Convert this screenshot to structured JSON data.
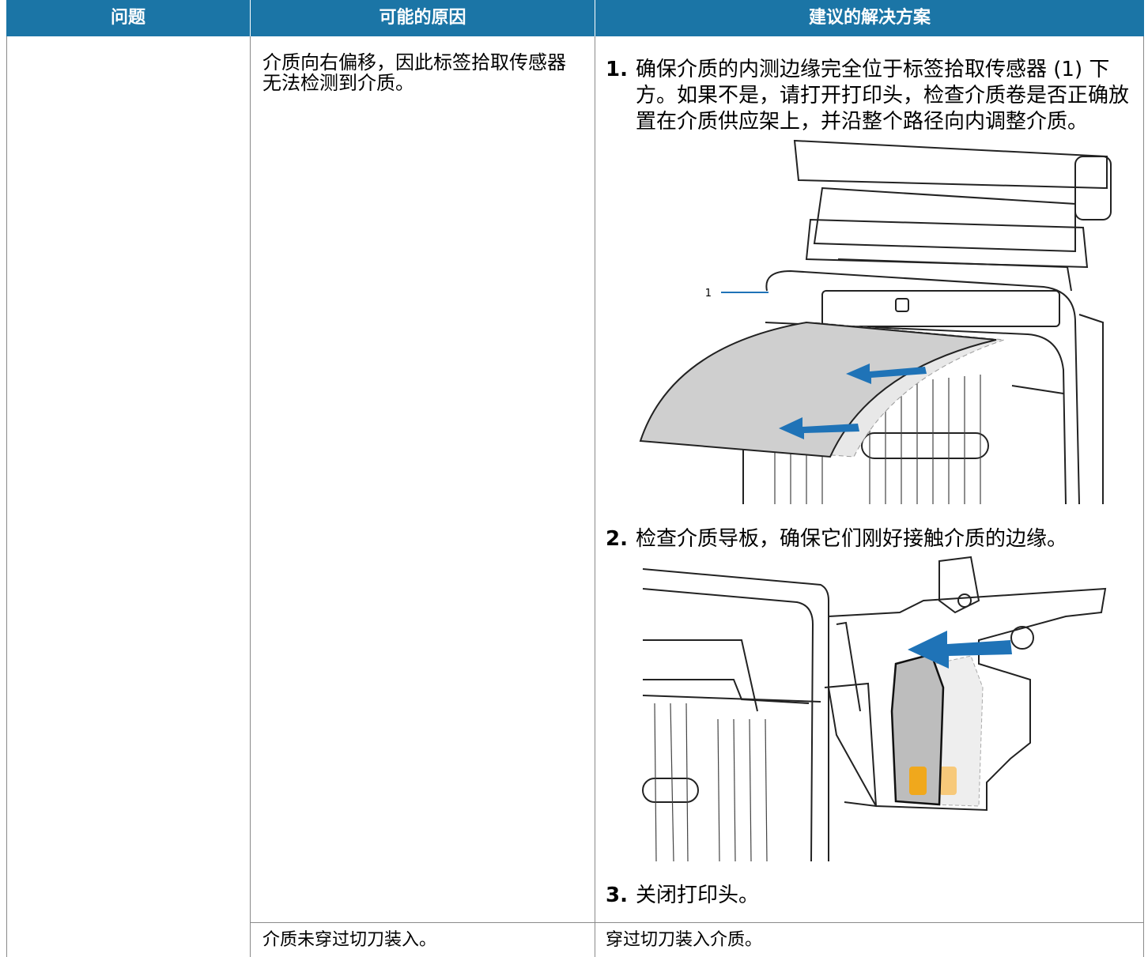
{
  "table": {
    "headers": [
      "问题",
      "可能的原因",
      "建议的解决方案"
    ],
    "rows": [
      {
        "cause": "介质向右偏移，因此标签拾取传感器无法检测到介质。",
        "steps": [
          {
            "number": "1.",
            "text": "确保介质的内测边缘完全位于标签拾取传感器 (1) 下方。如果不是，请打开打印头，检查介质卷是否正确放置在介质供应架上，并沿整个路径向内调整介质。"
          },
          {
            "number": "2.",
            "text": "检查介质导板，确保它们刚好接触介质的边缘。"
          },
          {
            "number": "3.",
            "text": "关闭打印头。"
          }
        ],
        "callout": "1"
      },
      {
        "cause": "介质未穿过切刀装入。",
        "solution": "穿过切刀装入介质。"
      }
    ]
  }
}
